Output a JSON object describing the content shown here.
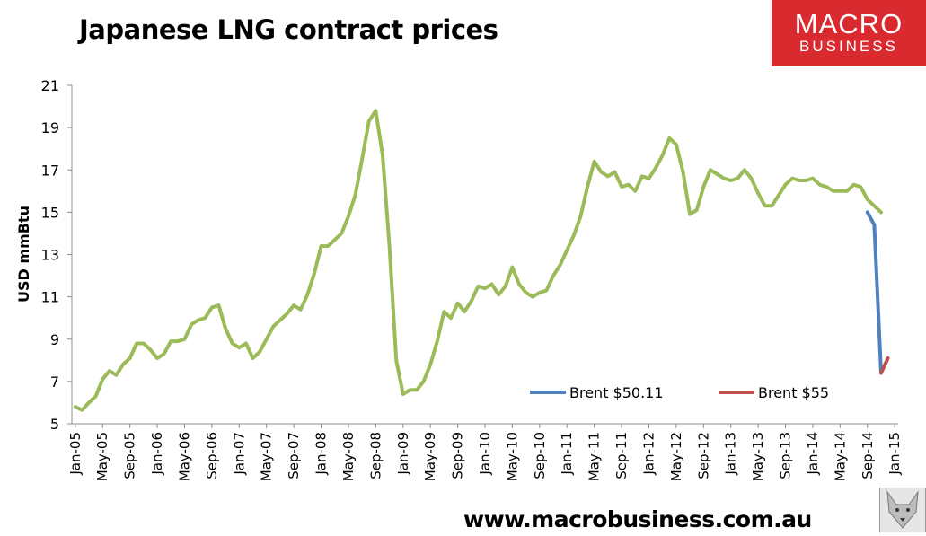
{
  "header": {
    "title": "Japanese LNG contract prices"
  },
  "logo": {
    "line1": "MACRO",
    "line2": "BUSINESS"
  },
  "footer": {
    "url": "www.macrobusiness.com.au"
  },
  "colors": {
    "main": "#9bbb59",
    "blue": "#4f81bd",
    "red": "#c0504d",
    "logo": "#d92a30"
  },
  "chart_data": {
    "type": "line",
    "title": "Japanese LNG contract prices",
    "xlabel": "",
    "ylabel": "USD mmBtu",
    "ylim": [
      5,
      21
    ],
    "yticks": [
      "5",
      "7",
      "9",
      "11",
      "13",
      "15",
      "17",
      "19",
      "21"
    ],
    "xticks": [
      "Jan-05",
      "May-05",
      "Sep-05",
      "Jan-06",
      "May-06",
      "Sep-06",
      "Jan-07",
      "May-07",
      "Sep-07",
      "Jan-08",
      "May-08",
      "Sep-08",
      "Jan-09",
      "May-09",
      "Sep-09",
      "Jan-10",
      "May-10",
      "Sep-10",
      "Jan-11",
      "May-11",
      "Sep-11",
      "Jan-12",
      "May-12",
      "Sep-12",
      "Jan-13",
      "May-13",
      "Sep-13",
      "Jan-14",
      "May-14",
      "Sep-14",
      "Jan-15"
    ],
    "grid": false,
    "legend_position": "bottom-right",
    "start_month": "Jan-05",
    "series": [
      {
        "name": "",
        "color": "#9bbb59",
        "values": [
          5.8,
          5.65,
          6.0,
          6.3,
          7.1,
          7.5,
          7.3,
          7.8,
          8.1,
          8.8,
          8.8,
          8.5,
          8.1,
          8.3,
          8.9,
          8.9,
          9.0,
          9.7,
          9.9,
          10.0,
          10.5,
          10.6,
          9.5,
          8.8,
          8.6,
          8.8,
          8.1,
          8.4,
          9.0,
          9.6,
          9.9,
          10.2,
          10.6,
          10.4,
          11.1,
          12.1,
          13.4,
          13.4,
          13.7,
          14.0,
          14.8,
          15.8,
          17.5,
          19.3,
          19.8,
          17.7,
          13.4,
          8.0,
          6.4,
          6.6,
          6.6,
          7.0,
          7.8,
          8.9,
          10.3,
          10.0,
          10.7,
          10.3,
          10.8,
          11.5,
          11.4,
          11.6,
          11.1,
          11.5,
          12.4,
          11.6,
          11.2,
          11.0,
          11.2,
          11.3,
          12.0,
          12.5,
          13.2,
          13.9,
          14.8,
          16.2,
          17.4,
          16.9,
          16.7,
          16.9,
          16.2,
          16.3,
          16.0,
          16.7,
          16.6,
          17.1,
          17.7,
          18.5,
          18.2,
          16.9,
          14.9,
          15.1,
          16.2,
          17.0,
          16.8,
          16.6,
          16.5,
          16.6,
          17.0,
          16.6,
          15.9,
          15.3,
          15.3,
          15.8,
          16.3,
          16.6,
          16.5,
          16.5,
          16.6,
          16.3,
          16.2,
          16.0,
          16.0,
          16.0,
          16.3,
          16.2,
          15.6,
          15.3,
          15.0
        ]
      },
      {
        "name": "Brent $50.11",
        "color": "#4f81bd",
        "start_month": "Sep-14",
        "values": [
          15.0,
          14.4,
          7.4
        ]
      },
      {
        "name": "Brent $55",
        "color": "#c0504d",
        "start_month": "Nov-14",
        "values": [
          7.4,
          8.1
        ]
      }
    ]
  }
}
